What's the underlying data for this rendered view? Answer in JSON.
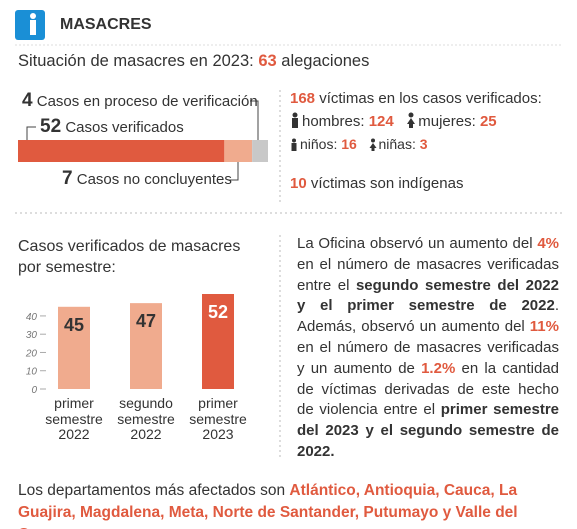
{
  "header": {
    "title": "MASACRES"
  },
  "summary": {
    "text": "Situación de masacres en 2023:",
    "count": 63,
    "unit": "alegaciones"
  },
  "breakdown": {
    "verified": {
      "value": 52,
      "label": "Casos verificados",
      "color": "#e05a3f"
    },
    "inconclusive": {
      "value": 7,
      "label": "Casos no concluyentes",
      "color": "#f0ab8e"
    },
    "in_process": {
      "value": 4,
      "label": "Casos en proceso de verificación",
      "color": "#c8c8c8"
    }
  },
  "victims": {
    "count": 168,
    "text": "víctimas en los casos verificados:",
    "men_label": "hombres:",
    "men": 124,
    "women_label": "mujeres:",
    "women": 25,
    "boys_label": "niños:",
    "boys": 16,
    "girls_label": "niñas:",
    "girls": 3,
    "indigenous": 10,
    "indigenous_text": "víctimas son indígenas"
  },
  "chart_data": {
    "type": "bar",
    "title": "Casos verificados de masacres por semestre:",
    "categories": [
      "primer semestre 2022",
      "segundo semestre 2022",
      "primer semestre 2023"
    ],
    "values": [
      45,
      47,
      52
    ],
    "colors": [
      "#f0ab8e",
      "#f0ab8e",
      "#e05a3f"
    ],
    "ylim": [
      0,
      55
    ],
    "yticks": [
      0,
      10,
      20,
      30,
      40
    ]
  },
  "paragraph": {
    "segments": [
      {
        "text": "La Oficina observó un aumento del ",
        "style": "plain"
      },
      {
        "text": "4%",
        "style": "orange"
      },
      {
        "text": " en el número de masacres verificadas entre el ",
        "style": "plain"
      },
      {
        "text": "segundo semestre del 2022 y el primer semestre de 2022",
        "style": "bold"
      },
      {
        "text": ". Además, observó un  aumento del ",
        "style": "plain"
      },
      {
        "text": "11%",
        "style": "orange"
      },
      {
        "text": " en el número de masacres verificadas y un aumento de ",
        "style": "plain"
      },
      {
        "text": "1.2%",
        "style": "orange"
      },
      {
        "text": " en la cantidad de víctimas derivadas de este hecho de violencia entre el ",
        "style": "plain"
      },
      {
        "text": "primer semestre del 2023 y el segundo semestre de 2022.",
        "style": "bold"
      }
    ]
  },
  "footer": {
    "segments": [
      {
        "text": "Los departamentos más afectados son ",
        "style": "plain"
      },
      {
        "text": "Atlántico, Antioquia, Cauca, La Guajira, Magdalena, Meta, Norte de Santander, Putumayo y Valle del Cauca",
        "style": "orange"
      }
    ]
  }
}
